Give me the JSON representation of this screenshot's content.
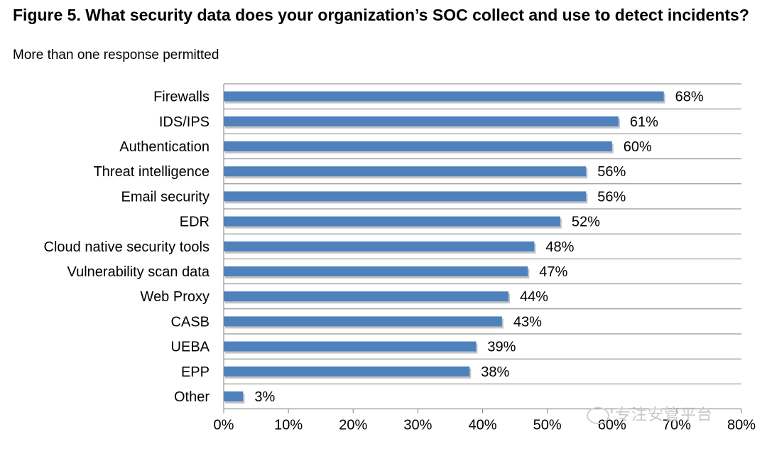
{
  "header": {
    "title": "Figure 5. What security data does your organization’s SOC collect and use to detect incidents?",
    "subtitle": "More than one response permitted"
  },
  "watermark": {
    "text": "专注安管平台",
    "icon": "wechat-icon"
  },
  "colors": {
    "bar": "#4f81bd",
    "bar_shadow": "#c4c4c4",
    "grid": "#7f7f7f",
    "axis": "#808080"
  },
  "chart_data": {
    "type": "bar",
    "orientation": "horizontal",
    "categories": [
      "Firewalls",
      "IDS/IPS",
      "Authentication",
      "Threat intelligence",
      "Email security",
      "EDR",
      "Cloud native security tools",
      "Vulnerability scan data",
      "Web Proxy",
      "CASB",
      "UEBA",
      "EPP",
      "Other"
    ],
    "values": [
      68,
      61,
      60,
      56,
      56,
      52,
      48,
      47,
      44,
      43,
      39,
      38,
      3
    ],
    "value_labels": [
      "68%",
      "61%",
      "60%",
      "56%",
      "56%",
      "52%",
      "48%",
      "47%",
      "44%",
      "43%",
      "39%",
      "38%",
      "3%"
    ],
    "xlim": [
      0,
      80
    ],
    "xticks": [
      0,
      10,
      20,
      30,
      40,
      50,
      60,
      70,
      80
    ],
    "xtick_labels": [
      "0%",
      "10%",
      "20%",
      "30%",
      "40%",
      "50%",
      "60%",
      "70%",
      "80%"
    ],
    "grid": "horizontal lines between categories",
    "legend": "none"
  }
}
